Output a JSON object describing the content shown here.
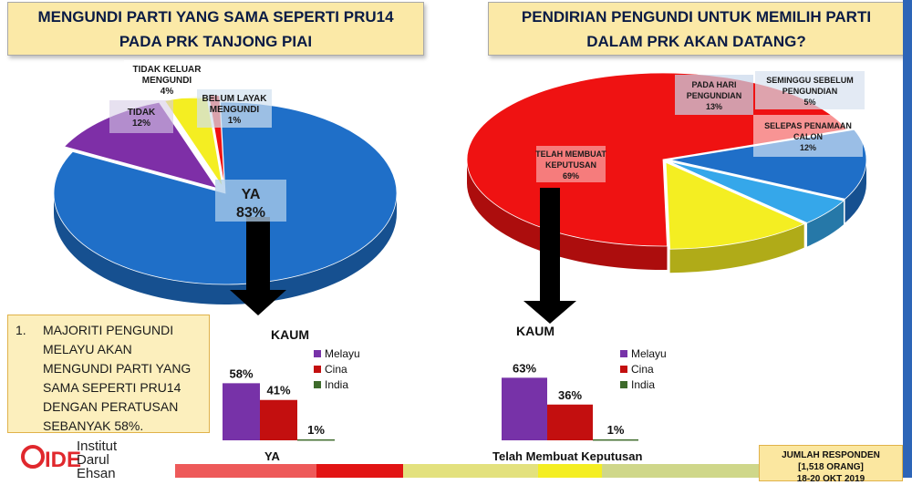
{
  "header_left": {
    "line1": "MENGUNDI PARTI YANG SAMA SEPERTI PRU14",
    "line2": "PADA PRK TANJONG PIAI"
  },
  "header_right": {
    "line1": "PENDIRIAN PENGUNDI UNTUK MEMILIH PARTI",
    "line2": "DALAM PRK AKAN DATANG?"
  },
  "note": {
    "number": "1.",
    "text": "MAJORITI PENGUNDI MELAYU AKAN MENGUNDI PARTI YANG SAMA SEPERTI PRU14 DENGAN PERATUSAN SEBANYAK 58%."
  },
  "footer": {
    "label_left": "YA",
    "label_right": "Telah Membuat Keputusan",
    "responden_line1": "JUMLAH RESPONDEN",
    "responden_line2": "[1,518 ORANG]",
    "responden_line3": "18-20 OKT 2019"
  },
  "logo": {
    "line1": "Institut",
    "line2": "Darul",
    "line3": "Ehsan",
    "mark": "IDE"
  },
  "colors": {
    "pie_blue": "#1f6fc8",
    "pie_red": "#ef1212",
    "pie_yellow": "#f4ee22",
    "pie_purple": "#7e2fa7",
    "pie_lightblue": "#35a7ea",
    "melayu": "#7732a8",
    "cina": "#c30f0f",
    "india": "#3e6b2b"
  },
  "chart_data": [
    {
      "type": "pie",
      "slices": [
        {
          "label": "YA",
          "value": 83,
          "display": "83%",
          "color": "#1f6fc8"
        },
        {
          "label": "TIDAK",
          "value": 12,
          "display": "12%",
          "color": "#7e2fa7"
        },
        {
          "label": "TIDAK KELUAR MENGUNDI",
          "value": 4,
          "display": "4%",
          "color": "#f4ee22"
        },
        {
          "label": "BELUM LAYAK MENGUNDI",
          "value": 1,
          "display": "1%",
          "color": "#ef1212"
        }
      ]
    },
    {
      "type": "pie",
      "slices": [
        {
          "label": "TELAH MEMBUAT KEPUTUSAN",
          "value": 69,
          "display": "69%",
          "color": "#ef1212"
        },
        {
          "label": "PADA HARI PENGUNDIAN",
          "value": 13,
          "display": "13%",
          "color": "#1f6fc8"
        },
        {
          "label": "SEMINGGU SEBELUM PENGUNDIAN",
          "value": 5,
          "display": "5%",
          "color": "#35a7ea"
        },
        {
          "label": "SELEPAS PENAMAAN CALON",
          "value": 12,
          "display": "12%",
          "color": "#f4ee22"
        }
      ]
    },
    {
      "type": "bar",
      "title": "KAUM",
      "categories": [
        "Melayu",
        "Cina",
        "India"
      ],
      "values": [
        58,
        41,
        1
      ],
      "labels": [
        "58%",
        "41%",
        "1%"
      ],
      "legend": [
        "Melayu",
        "Cina",
        "India"
      ],
      "ylim": [
        0,
        100
      ]
    },
    {
      "type": "bar",
      "title": "KAUM",
      "categories": [
        "Melayu",
        "Cina",
        "India"
      ],
      "values": [
        63,
        36,
        1
      ],
      "labels": [
        "63%",
        "36%",
        "1%"
      ],
      "legend": [
        "Melayu",
        "Cina",
        "India"
      ],
      "ylim": [
        0,
        100
      ]
    }
  ]
}
